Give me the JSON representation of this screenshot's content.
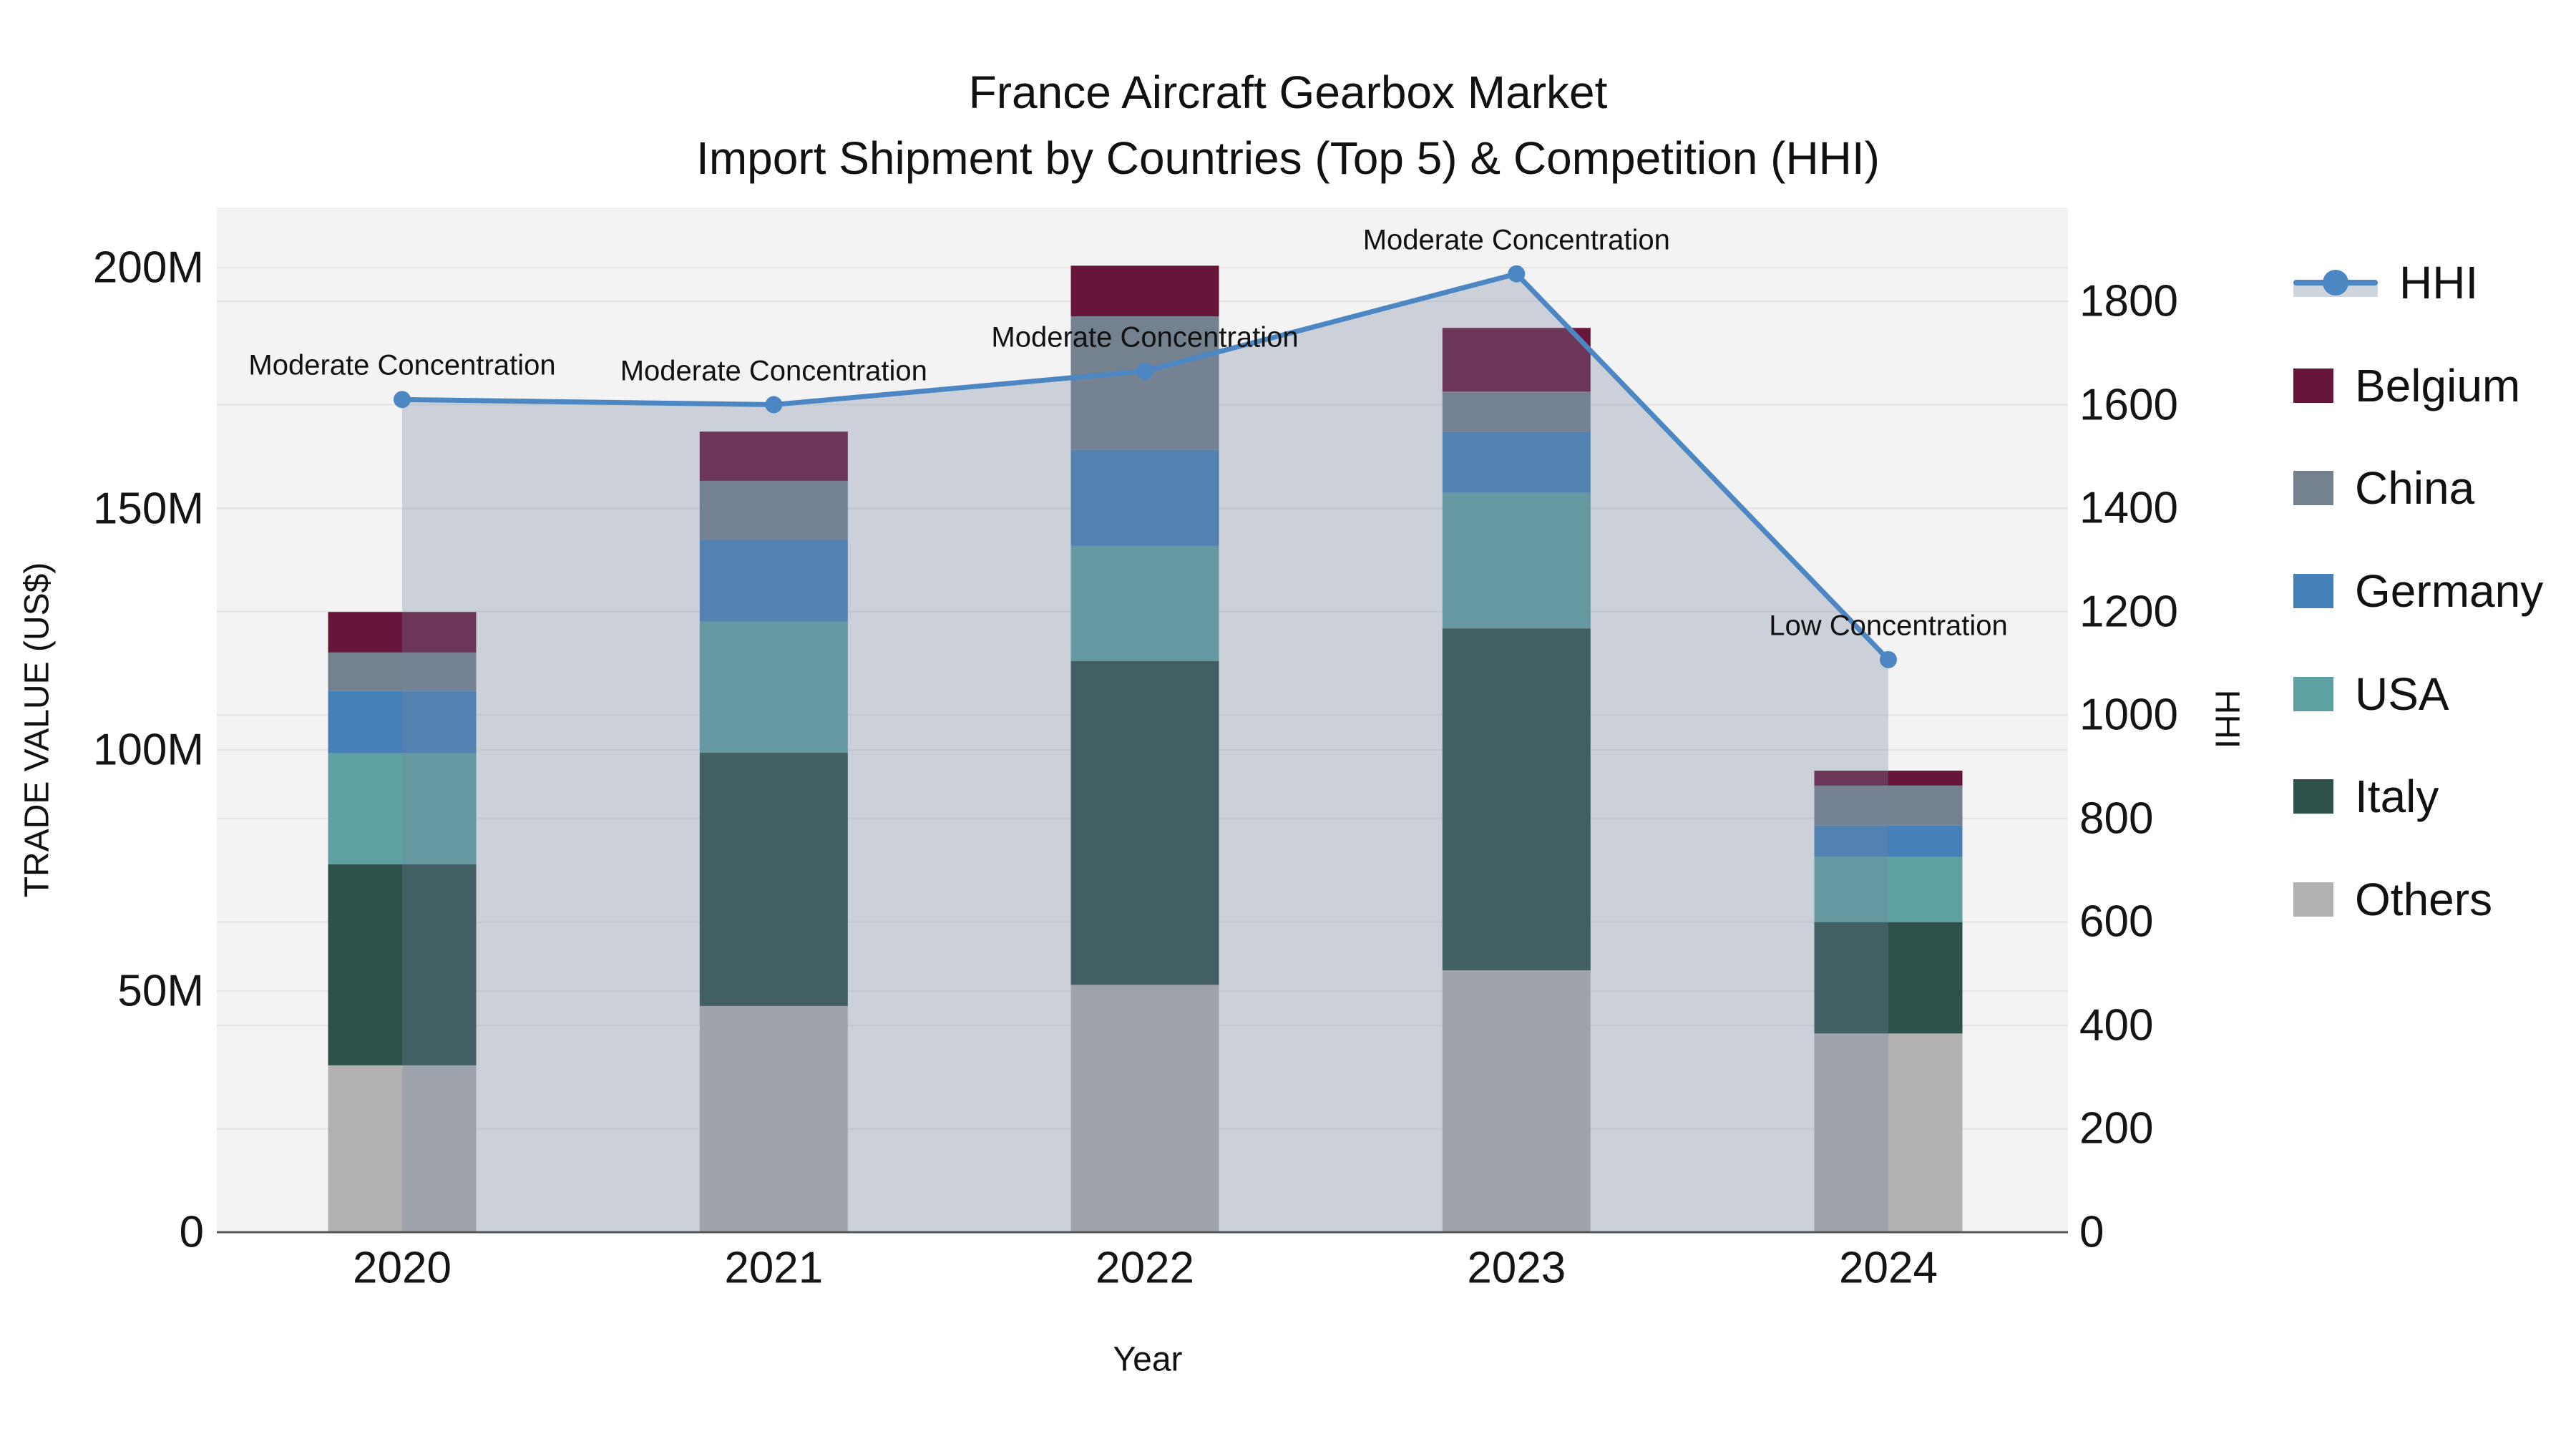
{
  "title": {
    "line1": "France Aircraft Gearbox Market",
    "line2": "Import Shipment by Countries (Top 5) & Competition (HHI)"
  },
  "axes": {
    "x": {
      "title": "Year",
      "ticks": [
        "2020",
        "2021",
        "2022",
        "2023",
        "2024"
      ]
    },
    "y_left": {
      "title": "TRADE VALUE (US$)",
      "ticks": [
        {
          "label": "0",
          "value": 0
        },
        {
          "label": "50M",
          "value": 50
        },
        {
          "label": "100M",
          "value": 100
        },
        {
          "label": "150M",
          "value": 150
        },
        {
          "label": "200M",
          "value": 200
        }
      ]
    },
    "y_right": {
      "title": "HHI",
      "ticks": [
        {
          "label": "0",
          "value": 0
        },
        {
          "label": "200",
          "value": 200
        },
        {
          "label": "400",
          "value": 400
        },
        {
          "label": "600",
          "value": 600
        },
        {
          "label": "800",
          "value": 800
        },
        {
          "label": "1000",
          "value": 1000
        },
        {
          "label": "1200",
          "value": 1200
        },
        {
          "label": "1400",
          "value": 1400
        },
        {
          "label": "1600",
          "value": 1600
        },
        {
          "label": "1800",
          "value": 1800
        }
      ]
    }
  },
  "legend": [
    {
      "label": "HHI",
      "type": "line",
      "color": "#4d87c3"
    },
    {
      "label": "Belgium",
      "type": "square",
      "color": "#671538"
    },
    {
      "label": "China",
      "type": "square",
      "color": "#74818f"
    },
    {
      "label": "Germany",
      "type": "square",
      "color": "#4581b8"
    },
    {
      "label": "USA",
      "type": "square",
      "color": "#5fa1a3"
    },
    {
      "label": "Italy",
      "type": "square",
      "color": "#2d504a"
    },
    {
      "label": "Others",
      "type": "square",
      "color": "#b2b1b0"
    }
  ],
  "annotations": [
    {
      "text": "Moderate Concentration",
      "year": "2020"
    },
    {
      "text": "Moderate Concentration",
      "year": "2021"
    },
    {
      "text": "Moderate Concentration",
      "year": "2022"
    },
    {
      "text": "Moderate Concentration",
      "year": "2023"
    },
    {
      "text": "Low Concentration",
      "year": "2024"
    }
  ],
  "chart_data": {
    "type": "combo: stacked-bar + line",
    "categories": [
      "2020",
      "2021",
      "2022",
      "2023",
      "2024"
    ],
    "unit_left": "Trade value, millions US$",
    "unit_right": "HHI index",
    "stack_order_bottom_to_top": [
      "Others",
      "Italy",
      "USA",
      "Germany",
      "China",
      "Belgium"
    ],
    "series": [
      {
        "name": "Belgium",
        "color": "#671538",
        "values": [
          8.4,
          10.2,
          10.5,
          13.2,
          3.1
        ]
      },
      {
        "name": "China",
        "color": "#74818f",
        "values": [
          8.0,
          12.2,
          27.7,
          8.3,
          8.3
        ]
      },
      {
        "name": "Germany",
        "color": "#4581b8",
        "values": [
          12.9,
          17.0,
          19.9,
          12.7,
          6.5
        ]
      },
      {
        "name": "USA",
        "color": "#5fa1a3",
        "values": [
          23.0,
          27.2,
          23.9,
          28.1,
          13.5
        ]
      },
      {
        "name": "Italy",
        "color": "#2d504a",
        "values": [
          41.7,
          52.5,
          67.1,
          70.9,
          23.1
        ]
      },
      {
        "name": "Others",
        "color": "#b2b1b0",
        "values": [
          34.6,
          46.9,
          51.3,
          54.3,
          41.2
        ]
      }
    ],
    "bar_totals": [
      128.6,
      166.0,
      200.4,
      187.5,
      95.7
    ],
    "hhi_series": {
      "name": "HHI",
      "color": "#4d87c3",
      "fill_color": "rgba(115,133,160,0.30)",
      "values": [
        1610,
        1600,
        1665,
        1853,
        1107
      ]
    },
    "title": "France Aircraft Gearbox Market — Import Shipment by Countries (Top 5) & Competition (HHI)",
    "xlabel": "Year",
    "ylabel_left": "TRADE VALUE (US$)",
    "ylabel_right": "HHI",
    "ylim_left": [
      0,
      212
    ],
    "ylim_right": [
      0,
      1910
    ],
    "grid": true,
    "legend_position": "right"
  }
}
